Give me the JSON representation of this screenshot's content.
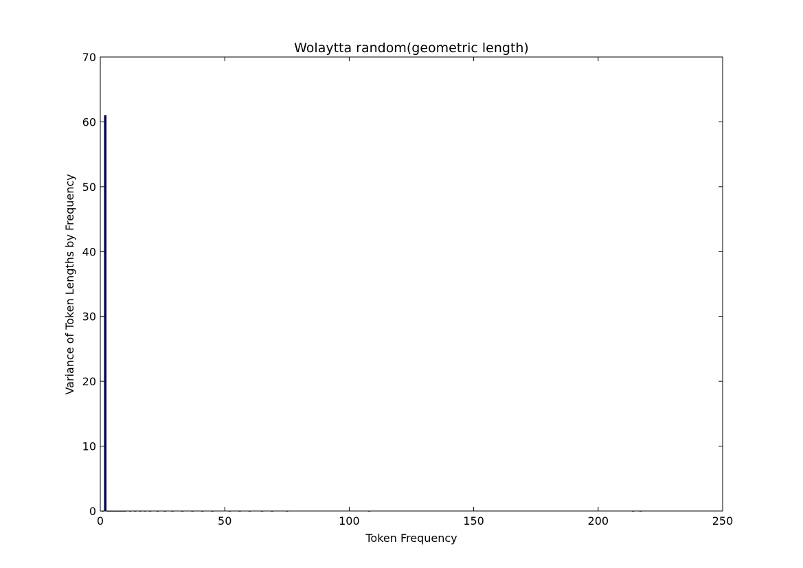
{
  "chart_data": {
    "type": "bar",
    "title": "Wolaytta random(geometric length)",
    "xlabel": "Token Frequency",
    "ylabel": "Variance of Token Lengths by Frequency",
    "xlim": [
      0,
      250
    ],
    "ylim": [
      0,
      70
    ],
    "xticks": [
      0,
      50,
      100,
      150,
      200,
      250
    ],
    "yticks": [
      0,
      10,
      20,
      30,
      40,
      50,
      60,
      70
    ],
    "bar_color": "#00007f",
    "grid": false,
    "bars": [
      {
        "x": 1,
        "value": 0.0
      },
      {
        "x": 2,
        "value": 61.0
      },
      {
        "x": 3,
        "value": 0.0
      },
      {
        "x": 4,
        "value": 0.0
      },
      {
        "x": 5,
        "value": 0.0
      },
      {
        "x": 6,
        "value": 0.0
      },
      {
        "x": 7,
        "value": 0.0
      },
      {
        "x": 8,
        "value": 0.0
      },
      {
        "x": 9,
        "value": 0.0
      },
      {
        "x": 10,
        "value": 0.0
      },
      {
        "x": 12,
        "value": 0.0
      },
      {
        "x": 14,
        "value": 0.0
      },
      {
        "x": 16,
        "value": 0.0
      },
      {
        "x": 18,
        "value": 0.0
      },
      {
        "x": 20,
        "value": 0.0
      },
      {
        "x": 23,
        "value": 0.0
      },
      {
        "x": 26,
        "value": 0.0
      },
      {
        "x": 29,
        "value": 0.0
      },
      {
        "x": 33,
        "value": 0.0
      },
      {
        "x": 37,
        "value": 0.0
      },
      {
        "x": 41,
        "value": 0.0
      },
      {
        "x": 45,
        "value": 0.0
      },
      {
        "x": 52,
        "value": 0.0
      },
      {
        "x": 56,
        "value": 0.0
      },
      {
        "x": 60,
        "value": 0.0
      },
      {
        "x": 65,
        "value": 0.0
      },
      {
        "x": 69,
        "value": 0.0
      },
      {
        "x": 75,
        "value": 0.0
      },
      {
        "x": 108,
        "value": 0.0
      },
      {
        "x": 214,
        "value": 0.0
      },
      {
        "x": 217,
        "value": 0.0
      }
    ]
  }
}
